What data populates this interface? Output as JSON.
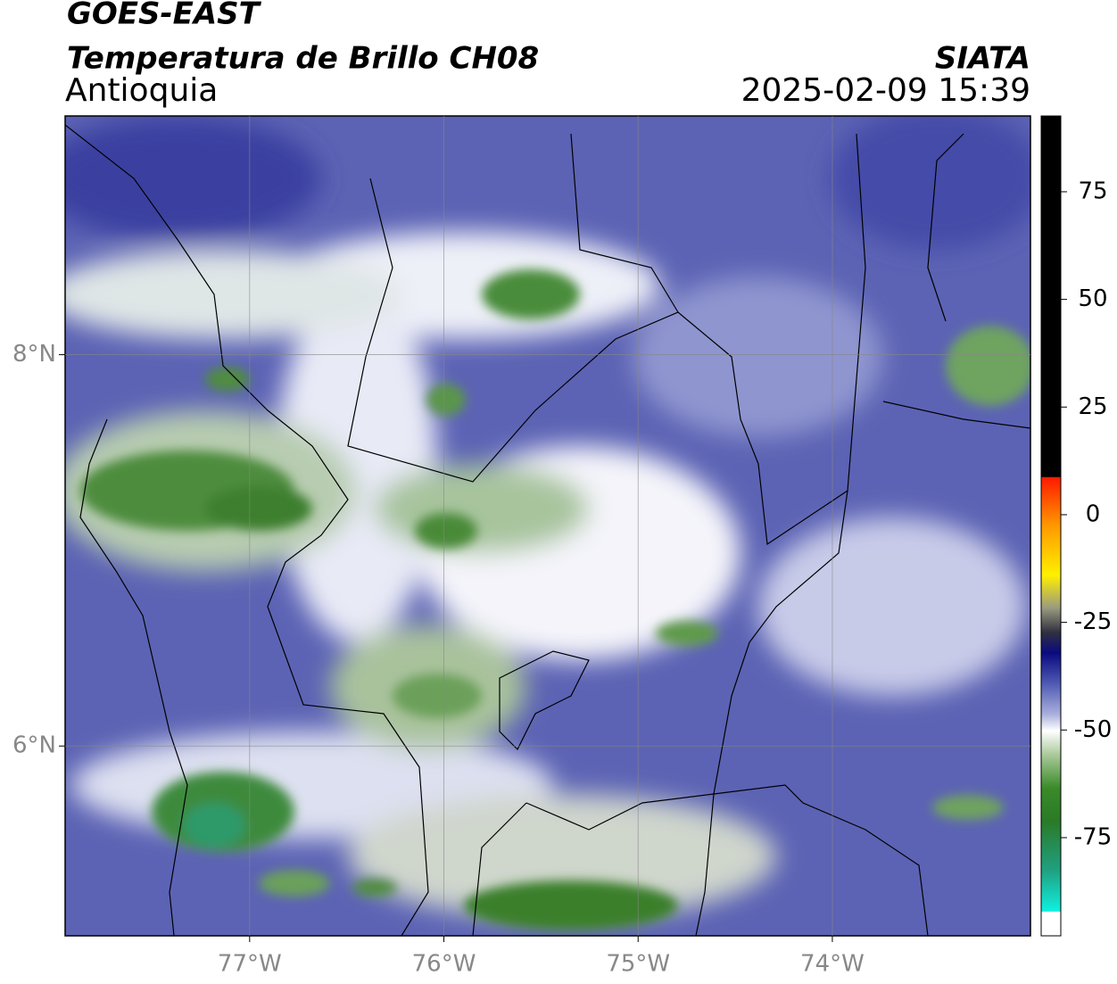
{
  "header": {
    "title": "GOES-EAST",
    "subtitle": "Temperatura de Brillo CH08",
    "region": "Antioquia",
    "source": "SIATA",
    "datetime": "2025-02-09 15:39"
  },
  "map": {
    "lon_lim": [
      -77.95,
      -72.98
    ],
    "lat_lim": [
      5.03,
      9.22
    ],
    "lon_ticks": [
      {
        "value": -77,
        "label": "77°W"
      },
      {
        "value": -76,
        "label": "76°W"
      },
      {
        "value": -75,
        "label": "75°W"
      },
      {
        "value": -74,
        "label": "74°W"
      }
    ],
    "lat_ticks": [
      {
        "value": 8,
        "label": "8°N"
      },
      {
        "value": 6,
        "label": "6°N"
      }
    ]
  },
  "colorbar": {
    "lim": [
      -97.8,
      92.6
    ],
    "ticks": [
      75,
      50,
      25,
      0,
      -25,
      -50,
      -75
    ]
  }
}
